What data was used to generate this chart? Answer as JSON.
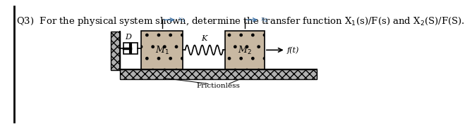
{
  "title": "Q3)  For the physical system shown, determine the transfer function X$_1$(s)/F(s) and X$_2$(S)/F(S).",
  "title_fontsize": 9.5,
  "frictionless_label": "Frictionless",
  "mass1_label": "M$_1$",
  "mass2_label": "M$_2$",
  "damper_label": "D",
  "spring_label": "K",
  "force_label": "f(t)",
  "x1_label": "x$_1$",
  "x2_label": "x$_2$",
  "mass_facecolor": "#c8b8a2",
  "wall_facecolor": "#b0b0b0",
  "floor_facecolor": "#b0b0b0"
}
